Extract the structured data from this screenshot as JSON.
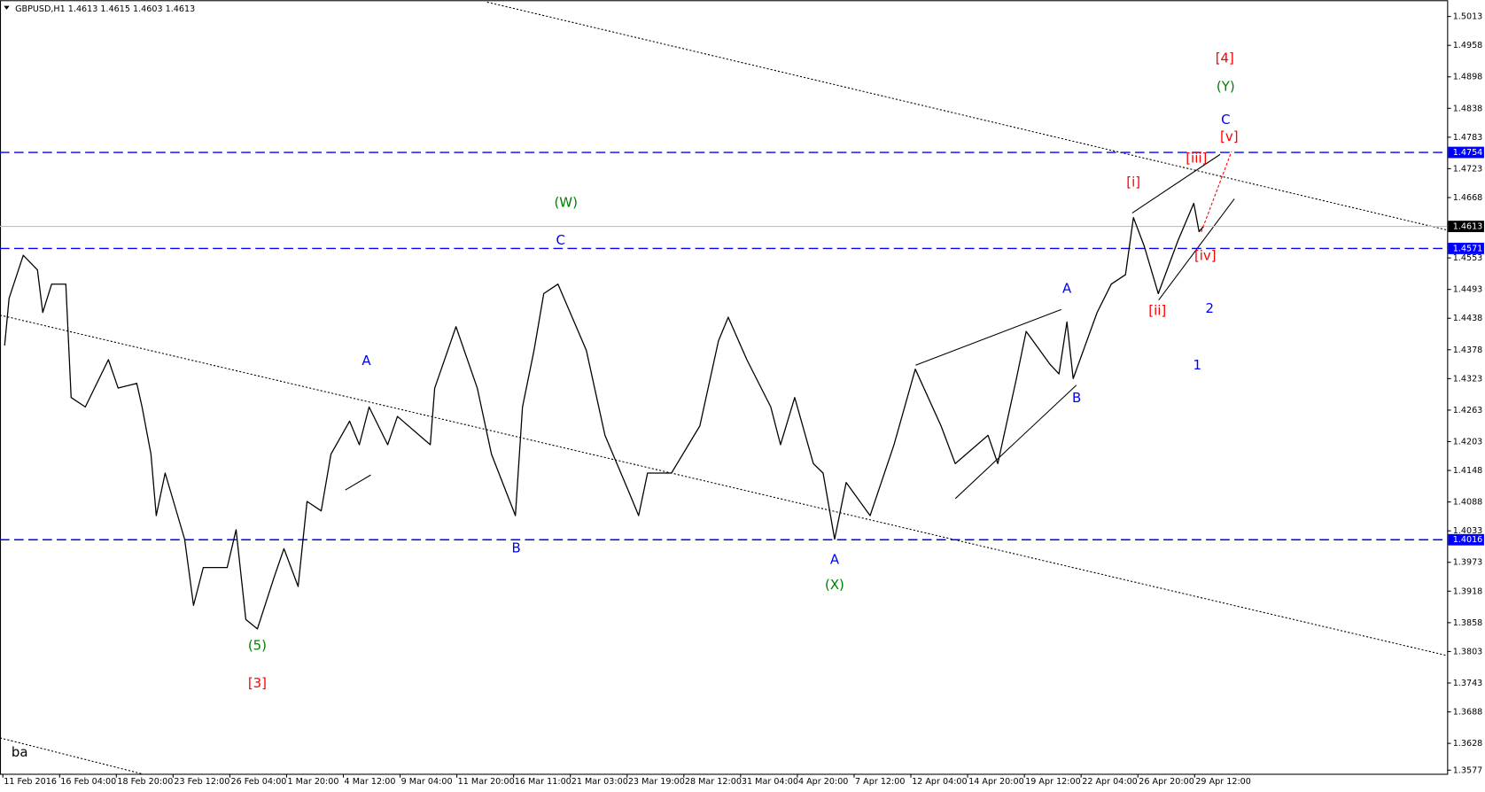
{
  "chart_data": {
    "type": "line",
    "title": "GBPUSD,H1  1.4613 1.4615 1.4603 1.4613",
    "xlim": [
      -3.2,
      1628.8
    ],
    "ylim": [
      1.357,
      1.5044
    ],
    "xticks": [
      {
        "value": 0,
        "label": "11 Feb 2016"
      },
      {
        "value": 64,
        "label": "16 Feb 04:00"
      },
      {
        "value": 128,
        "label": "18 Feb 20:00"
      },
      {
        "value": 192,
        "label": "23 Feb 12:00"
      },
      {
        "value": 256,
        "label": "26 Feb 04:00"
      },
      {
        "value": 320,
        "label": "1 Mar 20:00"
      },
      {
        "value": 384,
        "label": "4 Mar 12:00"
      },
      {
        "value": 448,
        "label": "9 Mar 04:00"
      },
      {
        "value": 512,
        "label": "11 Mar 20:00"
      },
      {
        "value": 576,
        "label": "16 Mar 11:00"
      },
      {
        "value": 640,
        "label": "21 Mar 03:00"
      },
      {
        "value": 704,
        "label": "23 Mar 19:00"
      },
      {
        "value": 768,
        "label": "28 Mar 12:00"
      },
      {
        "value": 832,
        "label": "31 Mar 04:00"
      },
      {
        "value": 896,
        "label": "4 Apr 20:00"
      },
      {
        "value": 960,
        "label": "7 Apr 12:00"
      },
      {
        "value": 1024,
        "label": "12 Apr 04:00"
      },
      {
        "value": 1088,
        "label": "14 Apr 20:00"
      },
      {
        "value": 1152,
        "label": "19 Apr 12:00"
      },
      {
        "value": 1216,
        "label": "22 Apr 04:00"
      },
      {
        "value": 1280,
        "label": "26 Apr 20:00"
      },
      {
        "value": 1344,
        "label": "29 Apr 12:00"
      }
    ],
    "yticks": [
      1.5013,
      1.4958,
      1.4898,
      1.4838,
      1.4783,
      1.4723,
      1.4668,
      1.4553,
      1.4493,
      1.4438,
      1.4378,
      1.4323,
      1.4263,
      1.4203,
      1.4148,
      1.4088,
      1.4033,
      1.3973,
      1.3918,
      1.3858,
      1.3803,
      1.3743,
      1.3688,
      1.3628,
      1.3577
    ],
    "current_price": 1.4613,
    "horizontal_lines": [
      {
        "value": 1.4754,
        "color": "#0000ff"
      },
      {
        "value": 1.4571,
        "color": "#0000ff"
      },
      {
        "value": 1.4016,
        "color": "#0000ff"
      }
    ],
    "series": [
      {
        "name": "GBPUSD",
        "color": "#000000",
        "x": [
          2,
          7,
          23,
          39,
          45,
          55,
          71,
          77,
          93,
          119,
          130,
          151,
          157,
          167,
          173,
          183,
          205,
          215,
          226,
          253,
          263,
          274,
          287,
          306,
          317,
          333,
          343,
          359,
          370,
          391,
          402,
          413,
          434,
          445,
          482,
          487,
          511,
          535,
          551,
          578,
          586,
          599,
          610,
          626,
          658,
          679,
          706,
          717,
          727,
          754,
          786,
          807,
          818,
          839,
          866,
          877,
          893,
          914,
          925,
          938,
          951,
          978,
          1005,
          1029,
          1058,
          1074,
          1111,
          1122,
          1143,
          1154,
          1181,
          1191,
          1200,
          1207,
          1234,
          1250,
          1266,
          1275,
          1287,
          1303,
          1325,
          1343,
          1349,
          1354
        ],
        "values": [
          1.4386,
          1.4476,
          1.4558,
          1.453,
          1.4449,
          1.4503,
          1.4503,
          1.4287,
          1.4269,
          1.4359,
          1.4305,
          1.4314,
          1.4269,
          1.4179,
          1.4062,
          1.4143,
          1.4017,
          1.3891,
          1.3963,
          1.3963,
          1.4035,
          1.3864,
          1.3846,
          1.3945,
          1.3999,
          1.3927,
          1.4089,
          1.4071,
          1.4179,
          1.4242,
          1.4197,
          1.4269,
          1.4197,
          1.4251,
          1.4197,
          1.4305,
          1.4422,
          1.4305,
          1.4179,
          1.4062,
          1.4269,
          1.4377,
          1.4485,
          1.4503,
          1.4377,
          1.4215,
          1.4107,
          1.4062,
          1.4143,
          1.4143,
          1.4233,
          1.4395,
          1.444,
          1.4359,
          1.4269,
          1.4197,
          1.4287,
          1.4161,
          1.4143,
          1.4017,
          1.4125,
          1.4062,
          1.4197,
          1.4341,
          1.4233,
          1.4161,
          1.4215,
          1.4161,
          1.4323,
          1.4413,
          1.435,
          1.4332,
          1.4431,
          1.4323,
          1.4449,
          1.4503,
          1.4521,
          1.463,
          1.4576,
          1.4485,
          1.4585,
          1.4657,
          1.4603,
          1.4613
        ]
      }
    ],
    "annotations": [
      {
        "text": "[4]",
        "x": 1378,
        "y": 1.4932,
        "color": "#ff0000"
      },
      {
        "text": "(Y)",
        "x": 1379,
        "y": 1.4878,
        "color": "#008000"
      },
      {
        "text": "C",
        "x": 1379,
        "y": 1.4815,
        "color": "#0000ff"
      },
      {
        "text": "[v]",
        "x": 1383,
        "y": 1.4783,
        "color": "#ff0000"
      },
      {
        "text": "[iii]",
        "x": 1346,
        "y": 1.4741,
        "color": "#ff0000"
      },
      {
        "text": "[i]",
        "x": 1275,
        "y": 1.4696,
        "color": "#ff0000"
      },
      {
        "text": "(W)",
        "x": 635,
        "y": 1.4657,
        "color": "#008000"
      },
      {
        "text": "C",
        "x": 629,
        "y": 1.4585,
        "color": "#0000ff"
      },
      {
        "text": "[iv]",
        "x": 1356,
        "y": 1.4556,
        "color": "#ff0000"
      },
      {
        "text": "A",
        "x": 1200,
        "y": 1.4493,
        "color": "#0000ff"
      },
      {
        "text": "[ii]",
        "x": 1302,
        "y": 1.4451,
        "color": "#ff0000"
      },
      {
        "text": "2",
        "x": 1361,
        "y": 1.4455,
        "color": "#0000ff"
      },
      {
        "text": "A",
        "x": 410,
        "y": 1.4356,
        "color": "#0000ff"
      },
      {
        "text": "1",
        "x": 1347,
        "y": 1.4347,
        "color": "#0000ff"
      },
      {
        "text": "B",
        "x": 1211,
        "y": 1.4285,
        "color": "#0000ff"
      },
      {
        "text": "B",
        "x": 579,
        "y": 1.3999,
        "color": "#0000ff"
      },
      {
        "text": "A",
        "x": 938,
        "y": 1.3977,
        "color": "#0000ff"
      },
      {
        "text": "(X)",
        "x": 938,
        "y": 1.3929,
        "color": "#008000"
      },
      {
        "text": "(5)",
        "x": 287,
        "y": 1.3813,
        "color": "#008000"
      },
      {
        "text": "[3]",
        "x": 287,
        "y": 1.3741,
        "color": "#ff0000"
      },
      {
        "text": "ba",
        "x": 19,
        "y": 1.361,
        "color": "#000000"
      }
    ]
  }
}
